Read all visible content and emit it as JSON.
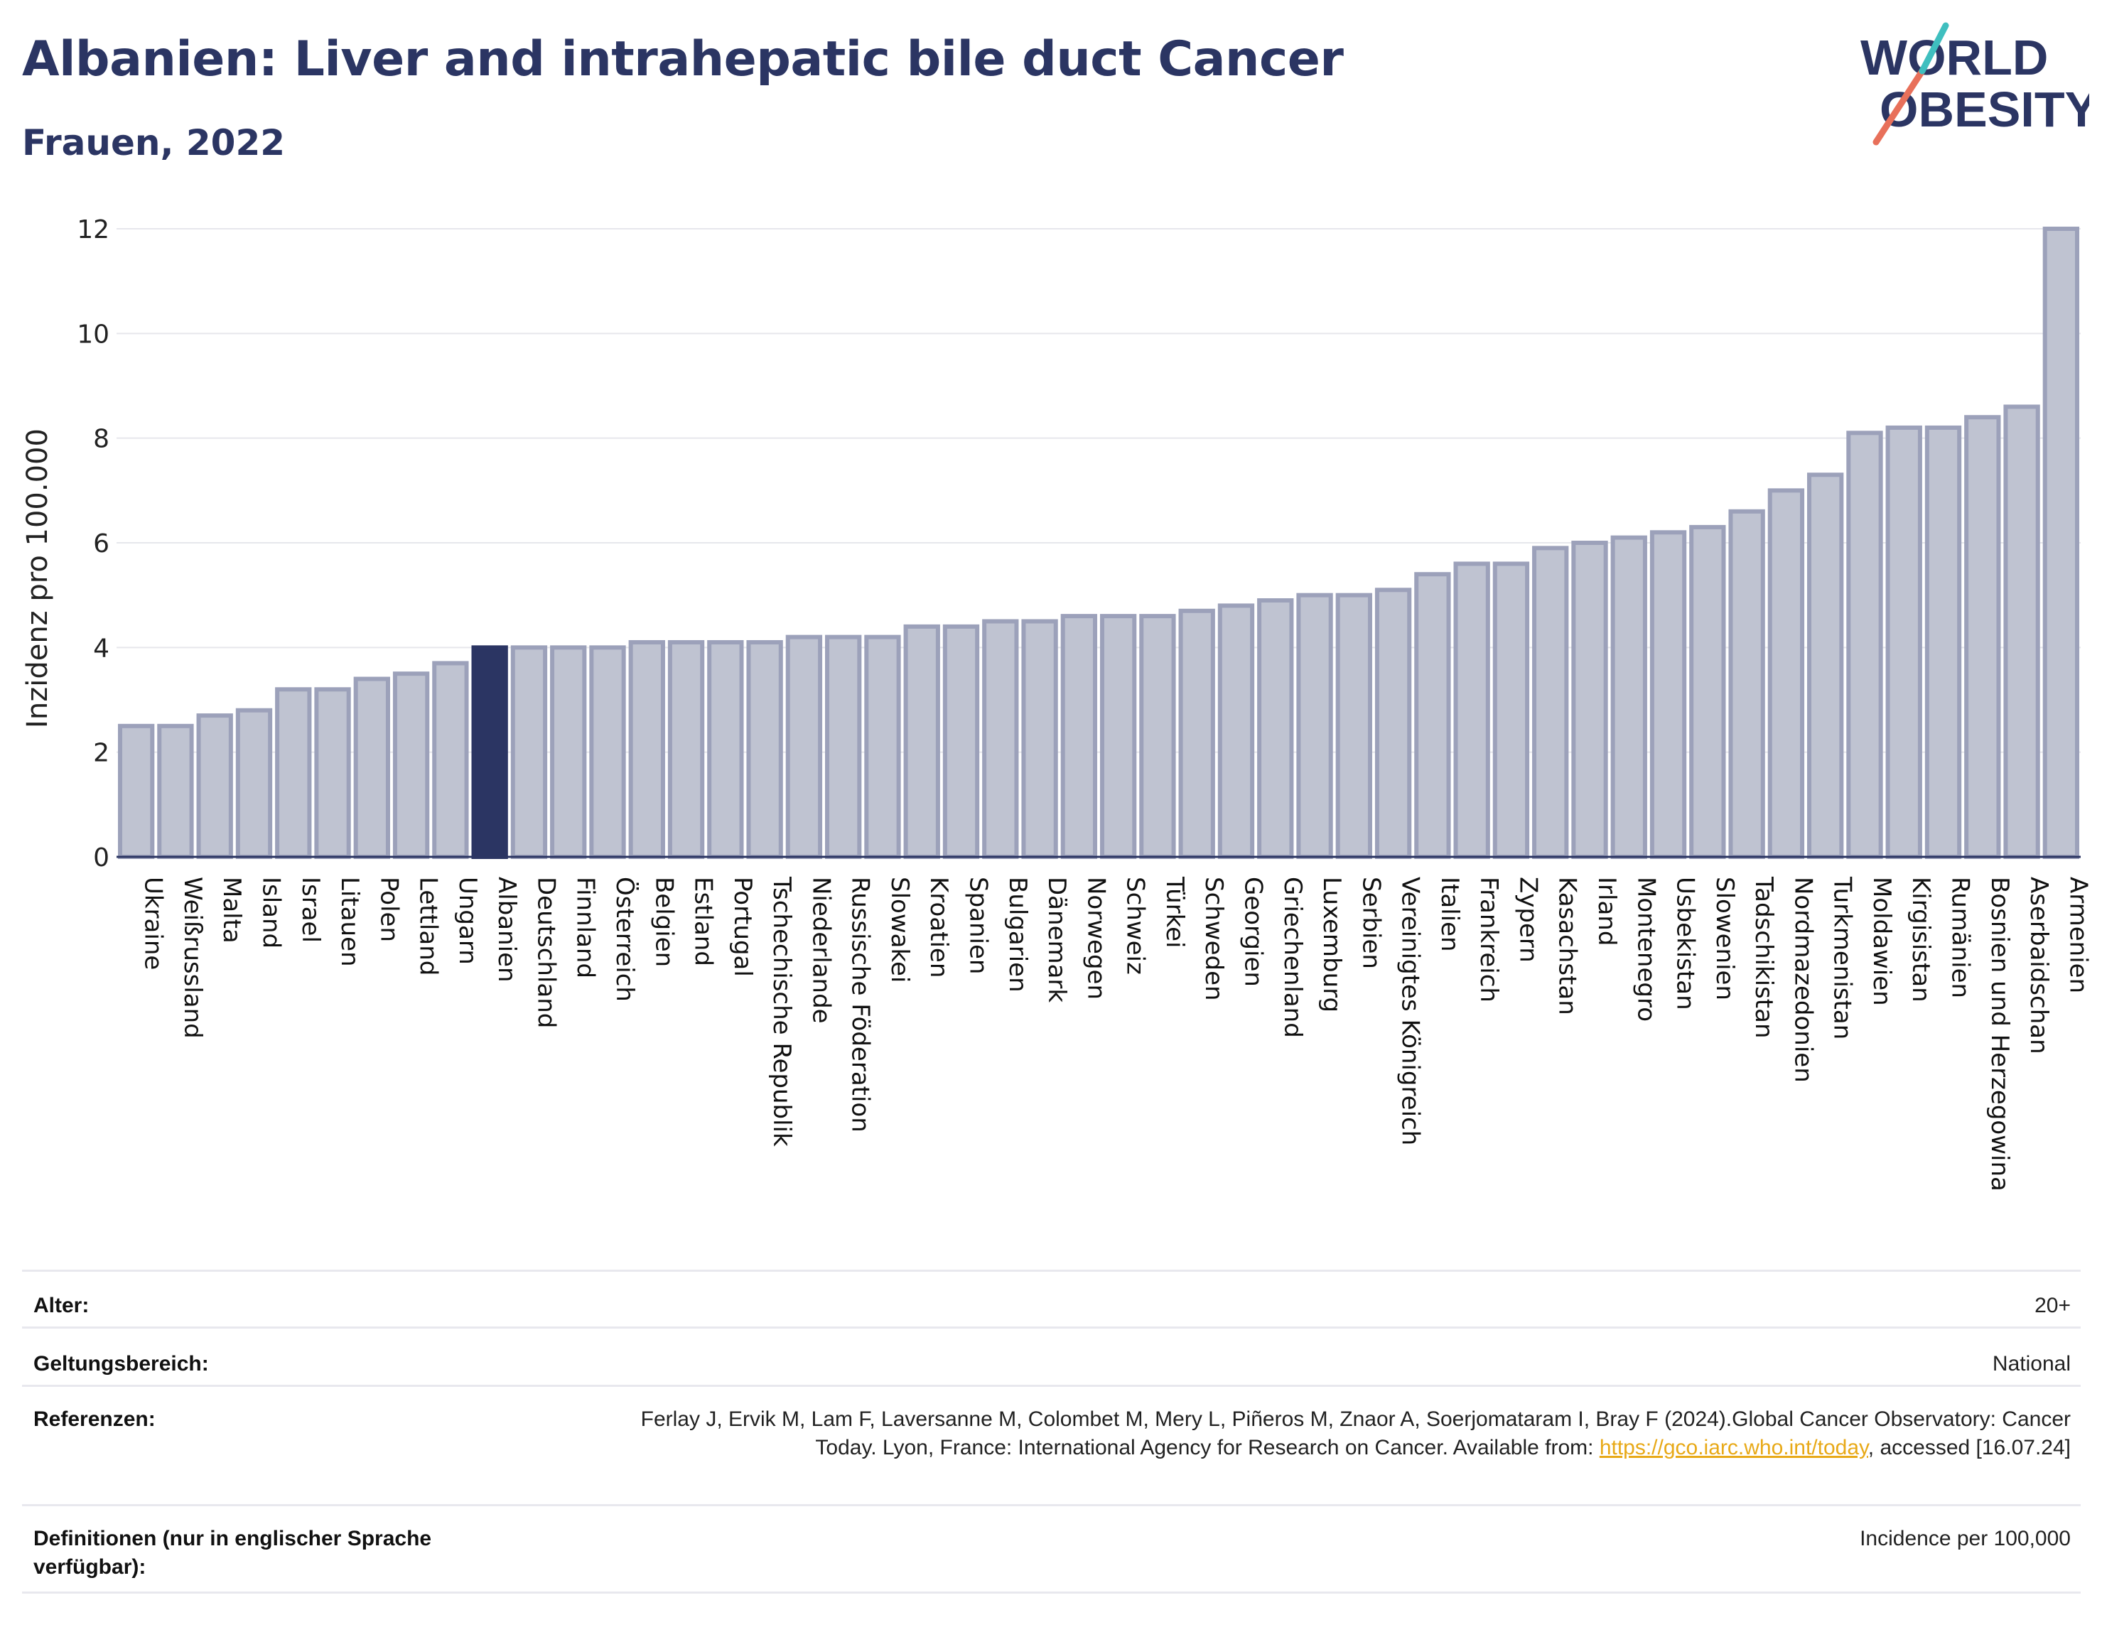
{
  "header": {
    "title": "Albanien: Liver and intrahepatic bile duct Cancer",
    "subtitle": "Frauen, 2022"
  },
  "logo": {
    "line1": "WORLD",
    "line2": "OBESITY"
  },
  "colors": {
    "highlight": "#2b3563",
    "bar": "#bfc3d1",
    "bar_border": "#9ca1ba",
    "text": "#2b3563"
  },
  "chart_data": {
    "type": "bar",
    "ylabel": "Inzidenz pro 100.000",
    "ylim": [
      0,
      12
    ],
    "yticks": [
      0,
      2,
      4,
      6,
      8,
      10,
      12
    ],
    "grid": true,
    "highlight": "Albanien",
    "categories": [
      "Ukraine",
      "Weißrussland",
      "Malta",
      "Island",
      "Israel",
      "Litauen",
      "Polen",
      "Lettland",
      "Ungarn",
      "Albanien",
      "Deutschland",
      "Finnland",
      "Österreich",
      "Belgien",
      "Estland",
      "Portugal",
      "Tschechische Republik",
      "Niederlande",
      "Russische Föderation",
      "Slowakei",
      "Kroatien",
      "Spanien",
      "Bulgarien",
      "Dänemark",
      "Norwegen",
      "Schweiz",
      "Türkei",
      "Schweden",
      "Georgien",
      "Griechenland",
      "Luxemburg",
      "Serbien",
      "Vereinigtes Königreich",
      "Italien",
      "Frankreich",
      "Zypern",
      "Kasachstan",
      "Irland",
      "Montenegro",
      "Usbekistan",
      "Slowenien",
      "Tadschikistan",
      "Nordmazedonien",
      "Turkmenistan",
      "Moldawien",
      "Kirgisistan",
      "Rumänien",
      "Bosnien und Herzegowina",
      "Aserbaidschan",
      "Armenien"
    ],
    "values": [
      2.5,
      2.5,
      2.7,
      2.8,
      3.2,
      3.2,
      3.4,
      3.5,
      3.7,
      4.0,
      4.0,
      4.0,
      4.0,
      4.1,
      4.1,
      4.1,
      4.1,
      4.2,
      4.2,
      4.2,
      4.4,
      4.4,
      4.5,
      4.5,
      4.6,
      4.6,
      4.6,
      4.7,
      4.8,
      4.9,
      5.0,
      5.0,
      5.1,
      5.4,
      5.6,
      5.6,
      5.9,
      6.0,
      6.1,
      6.2,
      6.3,
      6.6,
      7.0,
      7.3,
      8.1,
      8.2,
      8.2,
      8.4,
      8.6,
      12.0
    ]
  },
  "footer": {
    "rows": [
      {
        "label": "Alter:",
        "value": "20+"
      },
      {
        "label": "Geltungsbereich:",
        "value": "National"
      },
      {
        "label": "Referenzen:",
        "value_before": "Ferlay J, Ervik M, Lam F, Laversanne M, Colombet M, Mery L, Piñeros M, Znaor A, Soerjomataram I, Bray F (2024).Global Cancer Observatory: Cancer Today. Lyon, France: International Agency for Research on Cancer. Available from: ",
        "link": "https://gco.iarc.who.int/today",
        "value_after": ", accessed [16.07.24]"
      },
      {
        "label": "Definitionen (nur in englischer Sprache verfügbar):",
        "value": "Incidence per 100,000"
      }
    ]
  }
}
